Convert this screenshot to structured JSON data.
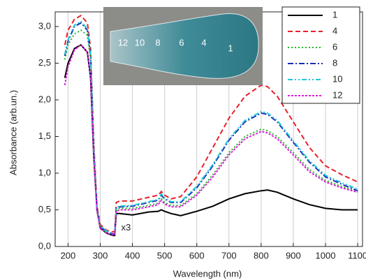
{
  "chart_data": {
    "type": "line",
    "xlabel": "Wavelength (nm)",
    "ylabel": "Absorbance (arb.un.)",
    "annotation": "x3",
    "inset_labels": [
      "12",
      "10",
      "8",
      "6",
      "4",
      "1"
    ],
    "xlim": [
      160,
      1115
    ],
    "ylim": [
      0,
      3.2
    ],
    "xticks": [
      200,
      300,
      400,
      500,
      600,
      700,
      800,
      900,
      1000,
      1100
    ],
    "yticks": [
      {
        "value": 0,
        "label": "0,0"
      },
      {
        "value": 0.5,
        "label": "0,5"
      },
      {
        "value": 1,
        "label": "1,0"
      },
      {
        "value": 1.5,
        "label": "1,5"
      },
      {
        "value": 2,
        "label": "2,0"
      },
      {
        "value": 2.5,
        "label": "2,5"
      },
      {
        "value": 3,
        "label": "3,0"
      }
    ],
    "grid": "x",
    "legend": "upper right",
    "x": [
      190,
      200,
      220,
      240,
      260,
      270,
      280,
      290,
      300,
      320,
      340,
      345,
      350,
      360,
      400,
      450,
      480,
      490,
      500,
      520,
      550,
      600,
      650,
      700,
      750,
      800,
      820,
      850,
      900,
      950,
      1000,
      1050,
      1100
    ],
    "series": [
      {
        "name": "1",
        "color": "#000000",
        "dash": "solid",
        "values": [
          2.3,
          2.5,
          2.7,
          2.75,
          2.65,
          2.3,
          1.2,
          0.5,
          0.25,
          0.18,
          0.15,
          0.15,
          0.45,
          0.45,
          0.43,
          0.47,
          0.48,
          0.5,
          0.48,
          0.45,
          0.42,
          0.48,
          0.55,
          0.65,
          0.72,
          0.76,
          0.77,
          0.74,
          0.65,
          0.57,
          0.52,
          0.5,
          0.5
        ]
      },
      {
        "name": "4",
        "color": "#e8202a",
        "dash": "dashed",
        "values": [
          2.75,
          2.95,
          3.1,
          3.15,
          3.05,
          2.7,
          1.4,
          0.55,
          0.3,
          0.22,
          0.2,
          0.2,
          0.6,
          0.62,
          0.62,
          0.67,
          0.7,
          0.75,
          0.7,
          0.65,
          0.68,
          0.95,
          1.35,
          1.75,
          2.05,
          2.2,
          2.18,
          2.05,
          1.7,
          1.35,
          1.1,
          0.98,
          0.88
        ]
      },
      {
        "name": "6",
        "color": "#22b522",
        "dash": "dotted",
        "values": [
          2.55,
          2.75,
          2.9,
          2.95,
          2.88,
          2.55,
          1.28,
          0.5,
          0.26,
          0.19,
          0.17,
          0.17,
          0.5,
          0.52,
          0.52,
          0.56,
          0.59,
          0.65,
          0.6,
          0.56,
          0.56,
          0.72,
          0.98,
          1.28,
          1.5,
          1.6,
          1.58,
          1.5,
          1.28,
          1.05,
          0.9,
          0.82,
          0.75
        ]
      },
      {
        "name": "8",
        "color": "#1a2db5",
        "dash": "dashdot",
        "values": [
          2.6,
          2.8,
          3.0,
          3.05,
          2.95,
          2.6,
          1.3,
          0.5,
          0.27,
          0.2,
          0.17,
          0.17,
          0.52,
          0.54,
          0.55,
          0.6,
          0.63,
          0.7,
          0.65,
          0.6,
          0.6,
          0.8,
          1.1,
          1.45,
          1.7,
          1.82,
          1.8,
          1.7,
          1.42,
          1.15,
          0.95,
          0.85,
          0.76
        ]
      },
      {
        "name": "10",
        "color": "#1ec8d8",
        "dash": "dashdotdot",
        "values": [
          2.62,
          2.82,
          3.02,
          3.07,
          2.97,
          2.62,
          1.32,
          0.51,
          0.28,
          0.21,
          0.18,
          0.18,
          0.53,
          0.55,
          0.56,
          0.61,
          0.64,
          0.72,
          0.66,
          0.61,
          0.61,
          0.82,
          1.12,
          1.47,
          1.72,
          1.84,
          1.82,
          1.72,
          1.44,
          1.17,
          0.97,
          0.87,
          0.78
        ]
      },
      {
        "name": "12",
        "color": "#d81ed8",
        "dash": "shortdot",
        "values": [
          2.2,
          2.45,
          2.68,
          2.75,
          2.65,
          2.3,
          1.22,
          0.48,
          0.25,
          0.18,
          0.16,
          0.16,
          0.48,
          0.5,
          0.5,
          0.54,
          0.57,
          0.63,
          0.58,
          0.54,
          0.54,
          0.7,
          0.95,
          1.25,
          1.47,
          1.57,
          1.55,
          1.47,
          1.25,
          1.02,
          0.88,
          0.8,
          0.74
        ]
      }
    ]
  }
}
